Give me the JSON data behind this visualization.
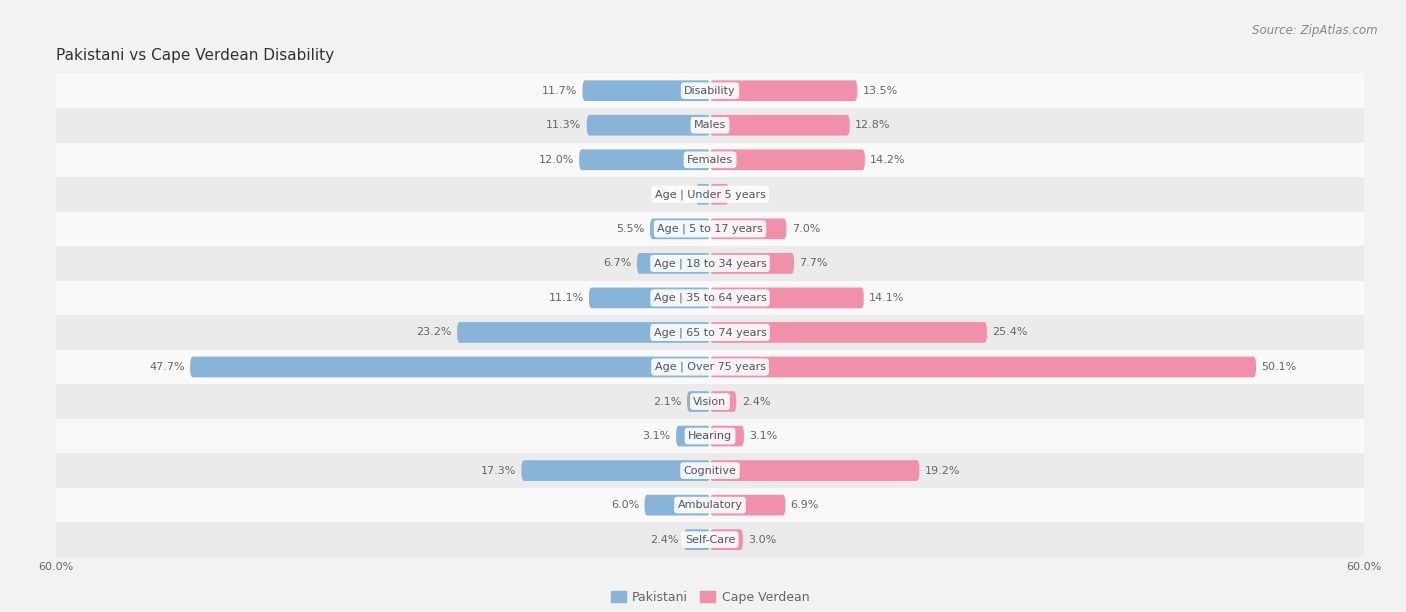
{
  "title": "Pakistani vs Cape Verdean Disability",
  "source": "Source: ZipAtlas.com",
  "categories": [
    "Disability",
    "Males",
    "Females",
    "Age | Under 5 years",
    "Age | 5 to 17 years",
    "Age | 18 to 34 years",
    "Age | 35 to 64 years",
    "Age | 65 to 74 years",
    "Age | Over 75 years",
    "Vision",
    "Hearing",
    "Cognitive",
    "Ambulatory",
    "Self-Care"
  ],
  "pakistani": [
    11.7,
    11.3,
    12.0,
    1.3,
    5.5,
    6.7,
    11.1,
    23.2,
    47.7,
    2.1,
    3.1,
    17.3,
    6.0,
    2.4
  ],
  "cape_verdean": [
    13.5,
    12.8,
    14.2,
    1.7,
    7.0,
    7.7,
    14.1,
    25.4,
    50.1,
    2.4,
    3.1,
    19.2,
    6.9,
    3.0
  ],
  "pakistani_color": "#88b4d8",
  "cape_verdean_color": "#f090aa",
  "pakistani_label": "Pakistani",
  "cape_verdean_label": "Cape Verdean",
  "xlim": 60.0,
  "bar_height": 0.58,
  "background_color": "#f2f2f2",
  "row_color_light": "#f9f9f9",
  "row_color_dark": "#ebebeb",
  "title_fontsize": 11,
  "source_fontsize": 8.5,
  "value_fontsize": 8,
  "category_fontsize": 8,
  "legend_fontsize": 9,
  "label_color": "#666666",
  "value_color": "#666666",
  "category_label_color": "#555555",
  "title_color": "#333333",
  "source_color": "#888888"
}
